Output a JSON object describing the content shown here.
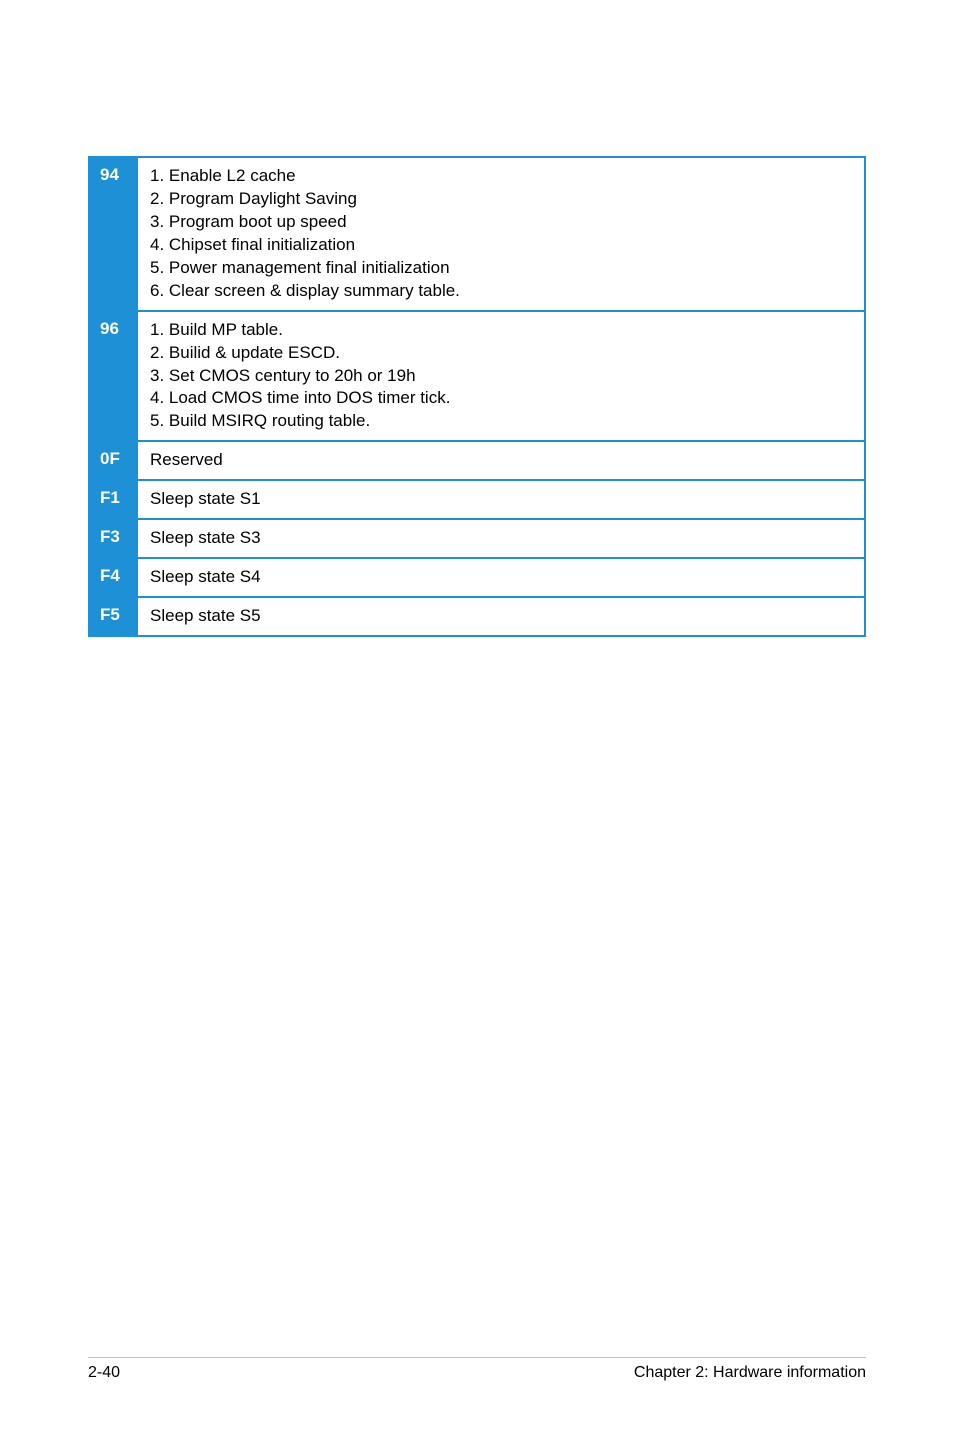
{
  "colors": {
    "border": "#1e90d6",
    "header_bg": "#1e90d6",
    "text": "#000000"
  },
  "table": {
    "rows": [
      {
        "code": "94",
        "desc": "1. Enable L2 cache\n2. Program Daylight Saving\n3. Program boot up speed\n4. Chipset final initialization\n5. Power management final initialization\n6. Clear screen & display summary table."
      },
      {
        "code": "96",
        "desc": "1. Build MP table.\n2. Builid & update ESCD.\n3. Set CMOS century to 20h or 19h\n4. Load CMOS time into DOS timer tick.\n5. Build MSIRQ routing table."
      },
      {
        "code": "0F",
        "desc": "Reserved"
      },
      {
        "code": "F1",
        "desc": "Sleep state S1"
      },
      {
        "code": "F3",
        "desc": "Sleep state S3"
      },
      {
        "code": "F4",
        "desc": "Sleep state S4"
      },
      {
        "code": "F5",
        "desc": "Sleep state S5"
      }
    ]
  },
  "footer": {
    "left": "2-40",
    "right": "Chapter 2: Hardware information"
  }
}
